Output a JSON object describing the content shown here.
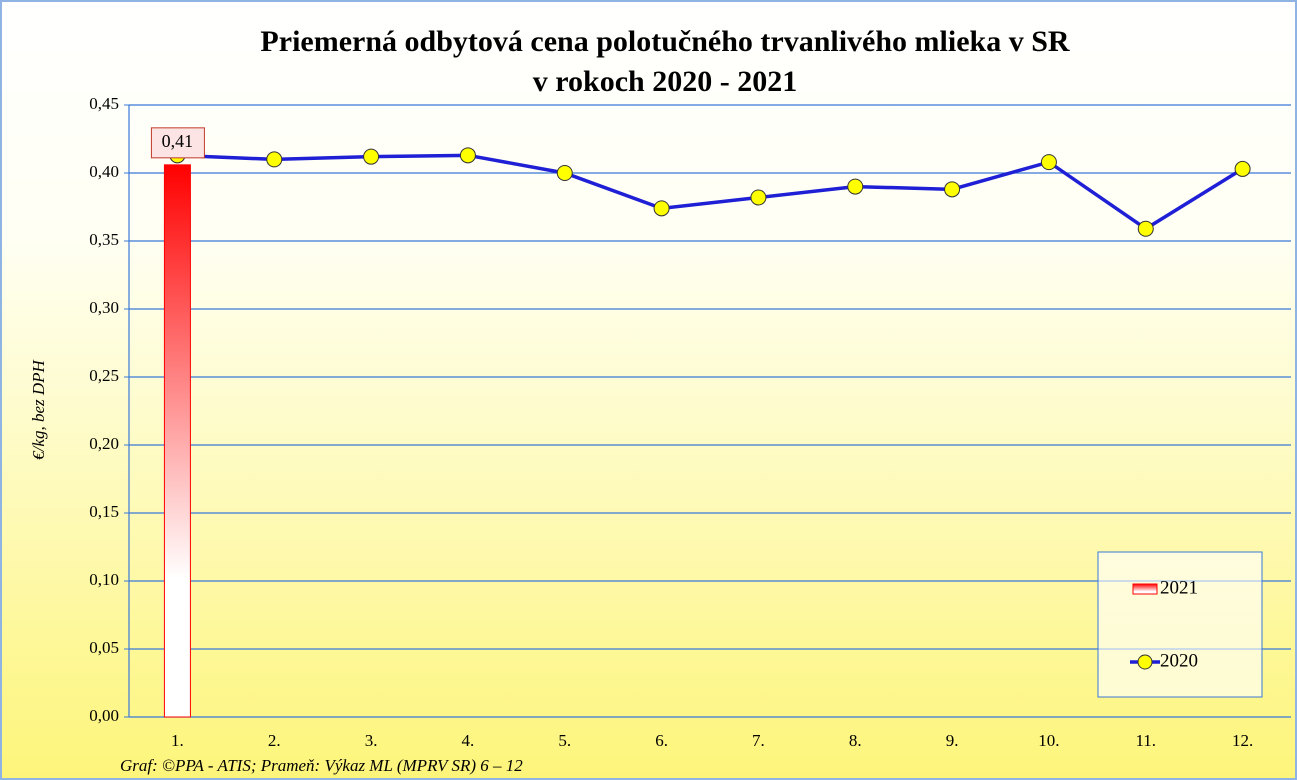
{
  "chart_data": {
    "type": "bar-line",
    "title": [
      "Priemerná odbytová cena polotučného trvanlivého mlieka v SR",
      "v rokoch 2020 - 2021"
    ],
    "y_label": "€/kg,  bez DPH",
    "source": "Graf: ©PPA - ATIS; Prameň: Výkaz ML (MPRV SR) 6 – 12",
    "categories": [
      "1.",
      "2.",
      "3.",
      "4.",
      "5.",
      "6.",
      "7.",
      "8.",
      "9.",
      "10.",
      "11.",
      "12."
    ],
    "series": [
      {
        "name": "2021",
        "type": "bar",
        "color": "#ff0000",
        "values": [
          0.406,
          null,
          null,
          null,
          null,
          null,
          null,
          null,
          null,
          null,
          null,
          null
        ],
        "value_labels": [
          "0,41",
          null,
          null,
          null,
          null,
          null,
          null,
          null,
          null,
          null,
          null,
          null
        ]
      },
      {
        "name": "2020",
        "type": "line",
        "color": "#1f1fd6",
        "values": [
          0.413,
          0.41,
          0.412,
          0.413,
          0.4,
          0.374,
          0.382,
          0.39,
          0.388,
          0.408,
          0.359,
          0.403
        ]
      }
    ],
    "ylim": [
      0,
      0.45
    ],
    "yticks": [
      {
        "value": 0,
        "label": "0,00"
      },
      {
        "value": 0.05,
        "label": "0,05"
      },
      {
        "value": 0.1,
        "label": "0,10"
      },
      {
        "value": 0.15,
        "label": "0,15"
      },
      {
        "value": 0.2,
        "label": "0,20"
      },
      {
        "value": 0.25,
        "label": "0,25"
      },
      {
        "value": 0.3,
        "label": "0,30"
      },
      {
        "value": 0.35,
        "label": "0,35"
      },
      {
        "value": 0.4,
        "label": "0,40"
      },
      {
        "value": 0.45,
        "label": "0,45"
      }
    ],
    "grid": true,
    "legend": "lower right"
  }
}
